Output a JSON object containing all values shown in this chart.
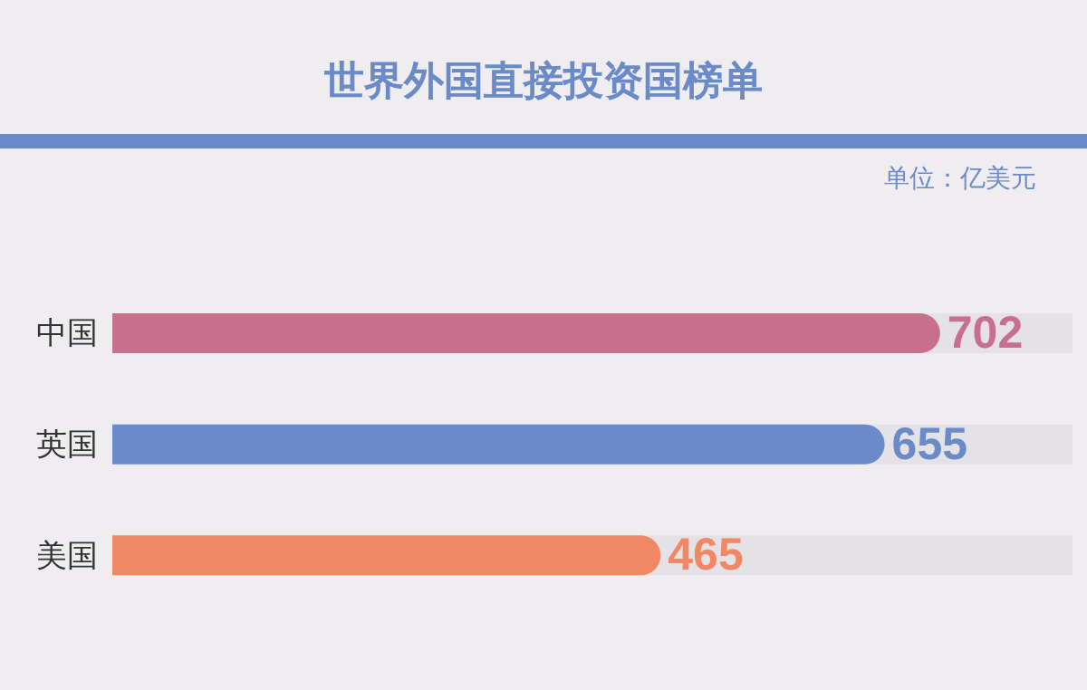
{
  "chart_data": {
    "type": "bar",
    "orientation": "horizontal",
    "title": "世界外国直接投资国榜单",
    "annotations": [
      "单位：亿美元"
    ],
    "categories": [
      "中国",
      "英国",
      "美国"
    ],
    "values": [
      702,
      655,
      465
    ],
    "colors": [
      "#c96f8e",
      "#6a8ac8",
      "#f08765"
    ],
    "data_labels": true,
    "grid": false,
    "legend": false
  }
}
